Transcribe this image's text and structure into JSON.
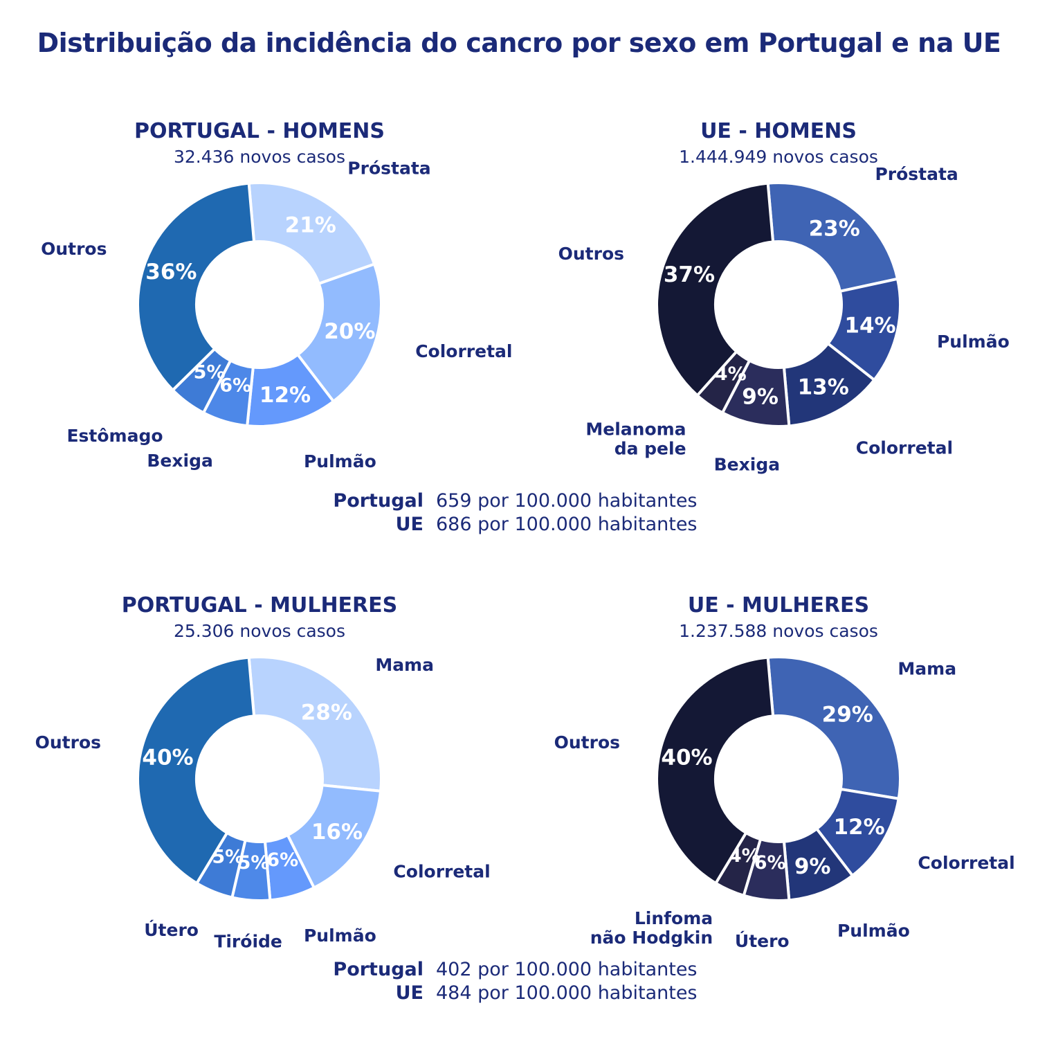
{
  "title": "Distribuição da incidência do cancro por sexo em Portugal e na UE",
  "chart_data": [
    {
      "type": "pie",
      "title": "PORTUGAL - HOMENS",
      "subtitle": "32.436 novos casos",
      "categories": [
        "Próstata",
        "Colorretal",
        "Pulmão",
        "Bexiga",
        "Estômago",
        "Outros"
      ],
      "values": [
        21,
        20,
        12,
        6,
        5,
        36
      ],
      "value_labels": [
        "21%",
        "20%",
        "12%",
        "6%",
        "5%",
        "36%"
      ],
      "colors": [
        "#b8d3fe",
        "#92bbfe",
        "#6499fc",
        "#4d88e8",
        "#3e7bd6",
        "#1f69b1"
      ]
    },
    {
      "type": "pie",
      "title": "UE - HOMENS",
      "subtitle": "1.444.949 novos casos",
      "categories": [
        "Próstata",
        "Pulmão",
        "Colorretal",
        "Bexiga",
        "Melanoma da pele",
        "Outros"
      ],
      "values": [
        23,
        14,
        13,
        9,
        4,
        37
      ],
      "value_labels": [
        "23%",
        "14%",
        "13%",
        "9%",
        "4%",
        "37%"
      ],
      "colors": [
        "#3f64b4",
        "#2f4c9e",
        "#223679",
        "#2b2d5c",
        "#242447",
        "#141835"
      ]
    },
    {
      "type": "pie",
      "title": "PORTUGAL - MULHERES",
      "subtitle": "25.306 novos casos",
      "categories": [
        "Mama",
        "Colorretal",
        "Pulmão",
        "Tiróide",
        "Útero",
        "Outros"
      ],
      "values": [
        28,
        16,
        6,
        5,
        5,
        40
      ],
      "value_labels": [
        "28%",
        "16%",
        "6%",
        "5%",
        "5%",
        "40%"
      ],
      "colors": [
        "#b8d3fe",
        "#92bbfe",
        "#6499fc",
        "#4d88e8",
        "#3e7bd6",
        "#1f69b1"
      ]
    },
    {
      "type": "pie",
      "title": "UE - MULHERES",
      "subtitle": "1.237.588 novos casos",
      "categories": [
        "Mama",
        "Colorretal",
        "Pulmão",
        "Útero",
        "Linfoma não Hodgkin",
        "Outros"
      ],
      "values": [
        29,
        12,
        9,
        6,
        4,
        40
      ],
      "value_labels": [
        "29%",
        "12%",
        "9%",
        "6%",
        "4%",
        "40%"
      ],
      "colors": [
        "#3f64b4",
        "#2f4c9e",
        "#223679",
        "#2b2d5c",
        "#242447",
        "#141835"
      ]
    }
  ],
  "rates_men": [
    {
      "label": "Portugal",
      "value": "659 por 100.000 habitantes"
    },
    {
      "label": "UE",
      "value": "686 por 100.000 habitantes"
    }
  ],
  "rates_women": [
    {
      "label": "Portugal",
      "value": "402 por 100.000 habitantes"
    },
    {
      "label": "UE",
      "value": "484 por 100.000 habitantes"
    }
  ]
}
